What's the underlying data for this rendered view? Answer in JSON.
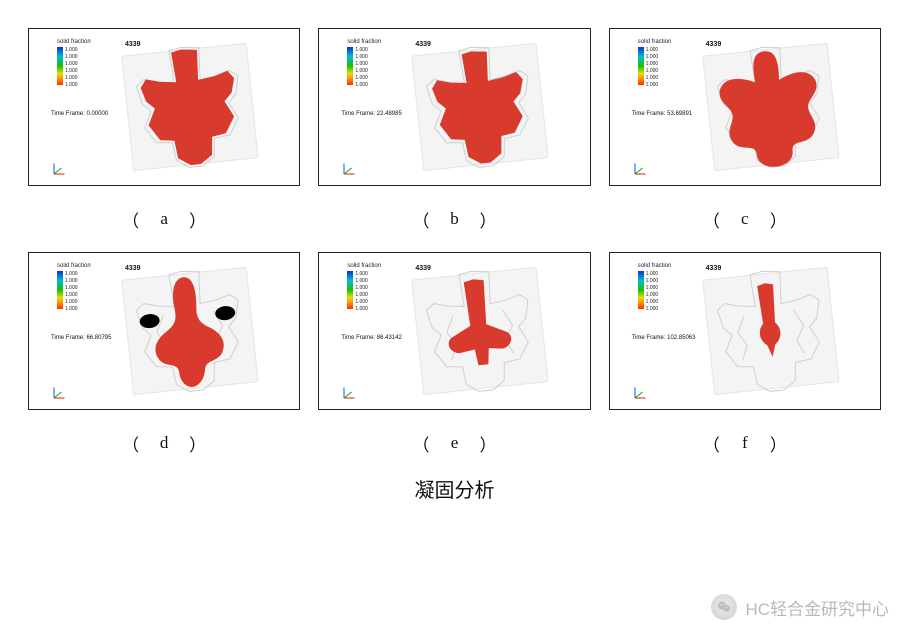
{
  "run_id": "4339",
  "legend_title": "solid fraction",
  "legend_ticks": [
    "1.000",
    "1.000",
    "1.000",
    "1.000",
    "1.000",
    "1.000"
  ],
  "solid_fill_color": "#d83b2e",
  "mold_bg_color": "#f4f4f4",
  "outline_stroke": "#cfcfcf",
  "panel_border": "#232323",
  "tilt_deg": -6,
  "panels": [
    {
      "key": "a",
      "letter": "a",
      "time_frame": "Time Frame:  0.00000",
      "variant": "full"
    },
    {
      "key": "b",
      "letter": "b",
      "time_frame": "Time Frame:  22.48985",
      "variant": "scale",
      "scale": 0.97
    },
    {
      "key": "c",
      "letter": "c",
      "time_frame": "Time Frame:  53.69891",
      "variant": "blobby"
    },
    {
      "key": "d",
      "letter": "d",
      "time_frame": "Time Frame:  66.80795",
      "variant": "blobby2"
    },
    {
      "key": "e",
      "letter": "e",
      "time_frame": "Time Frame:  86.43142",
      "variant": "core"
    },
    {
      "key": "f",
      "letter": "f",
      "time_frame": "Time Frame:  102.85063",
      "variant": "tiny"
    }
  ],
  "axes_labels": [
    "z",
    "y",
    "x"
  ],
  "axes_colors": {
    "z": "#1060d8",
    "y": "#11a01a",
    "x": "#d82828"
  },
  "figure_title": "凝固分析",
  "watermark_text": "HC轻合金研究中心"
}
